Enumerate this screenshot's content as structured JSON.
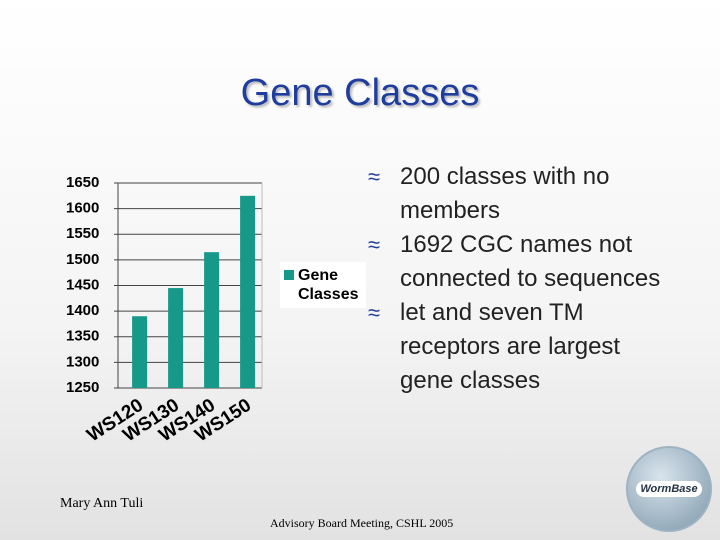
{
  "title": "Gene Classes",
  "bullets": [
    "200 classes with no members",
    "1692 CGC names not connected to sequences",
    "let and seven TM receptors are largest gene classes"
  ],
  "author": "Mary Ann Tuli",
  "footer": "Advisory Board Meeting, CSHL 2005",
  "logo": "WormBase",
  "chart_data": {
    "type": "bar",
    "categories": [
      "WS120",
      "WS130",
      "WS140",
      "WS150"
    ],
    "series": [
      {
        "name": "Gene Classes",
        "color": "#17998a",
        "values": [
          1390,
          1445,
          1515,
          1625
        ]
      }
    ],
    "ylim": [
      1250,
      1650
    ],
    "yticks": [
      1250,
      1300,
      1350,
      1400,
      1450,
      1500,
      1550,
      1600,
      1650
    ],
    "grid": true
  }
}
